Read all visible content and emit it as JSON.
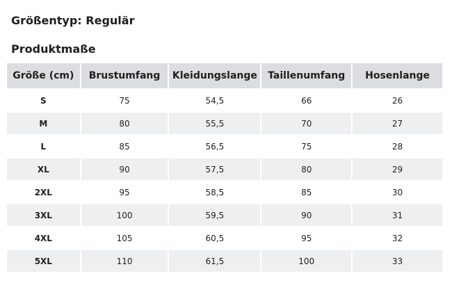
{
  "size_type": "Größentyp: Regulär",
  "section_title": "Produktmaße",
  "table": {
    "headers": [
      "Größe (cm)",
      "Brustumfang",
      "Kleidungslange",
      "Taillenumfang",
      "Hosenlange"
    ],
    "rows": [
      [
        "S",
        "75",
        "54,5",
        "66",
        "26"
      ],
      [
        "M",
        "80",
        "55,5",
        "70",
        "27"
      ],
      [
        "L",
        "85",
        "56,5",
        "75",
        "28"
      ],
      [
        "XL",
        "90",
        "57,5",
        "80",
        "29"
      ],
      [
        "2XL",
        "95",
        "58,5",
        "85",
        "30"
      ],
      [
        "3XL",
        "100",
        "59,5",
        "90",
        "31"
      ],
      [
        "4XL",
        "105",
        "60,5",
        "95",
        "32"
      ],
      [
        "5XL",
        "110",
        "61,5",
        "100",
        "33"
      ]
    ]
  },
  "colors": {
    "header_bg": "#dcdde0",
    "alt_row_bg": "#eeeff1",
    "text": "#1f1f1f"
  }
}
